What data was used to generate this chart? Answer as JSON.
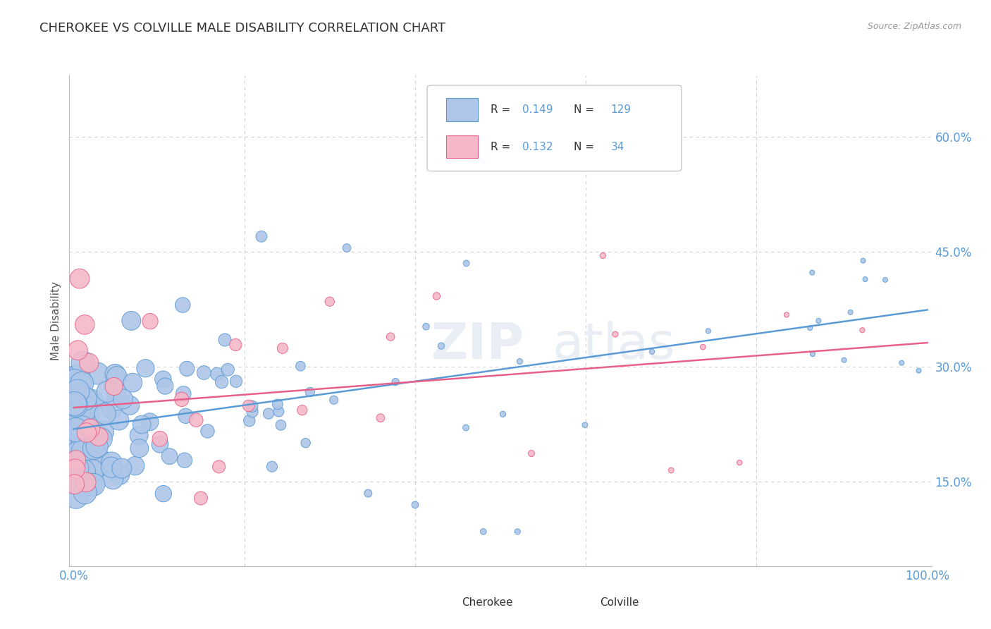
{
  "title": "CHEROKEE VS COLVILLE MALE DISABILITY CORRELATION CHART",
  "source": "Source: ZipAtlas.com",
  "ylabel": "Male Disability",
  "ytick_positions": [
    0.15,
    0.3,
    0.45,
    0.6
  ],
  "cherokee_color": "#aec6e8",
  "colville_color": "#f4b8c8",
  "cherokee_edge_color": "#5b9bd5",
  "colville_edge_color": "#e8608a",
  "cherokee_line_color": "#5b9bd5",
  "colville_line_color": "#e8608a",
  "tick_label_color": "#5b9bd5",
  "cherokee_R": 0.149,
  "cherokee_N": 129,
  "colville_R": 0.132,
  "colville_N": 34,
  "background_color": "#ffffff",
  "grid_color": "#d0d0d0",
  "title_color": "#333333",
  "axis_label_color": "#555555",
  "legend_text_color": "#333333",
  "legend_val_color": "#5b9bd5",
  "watermark_color": "#e8eef4"
}
